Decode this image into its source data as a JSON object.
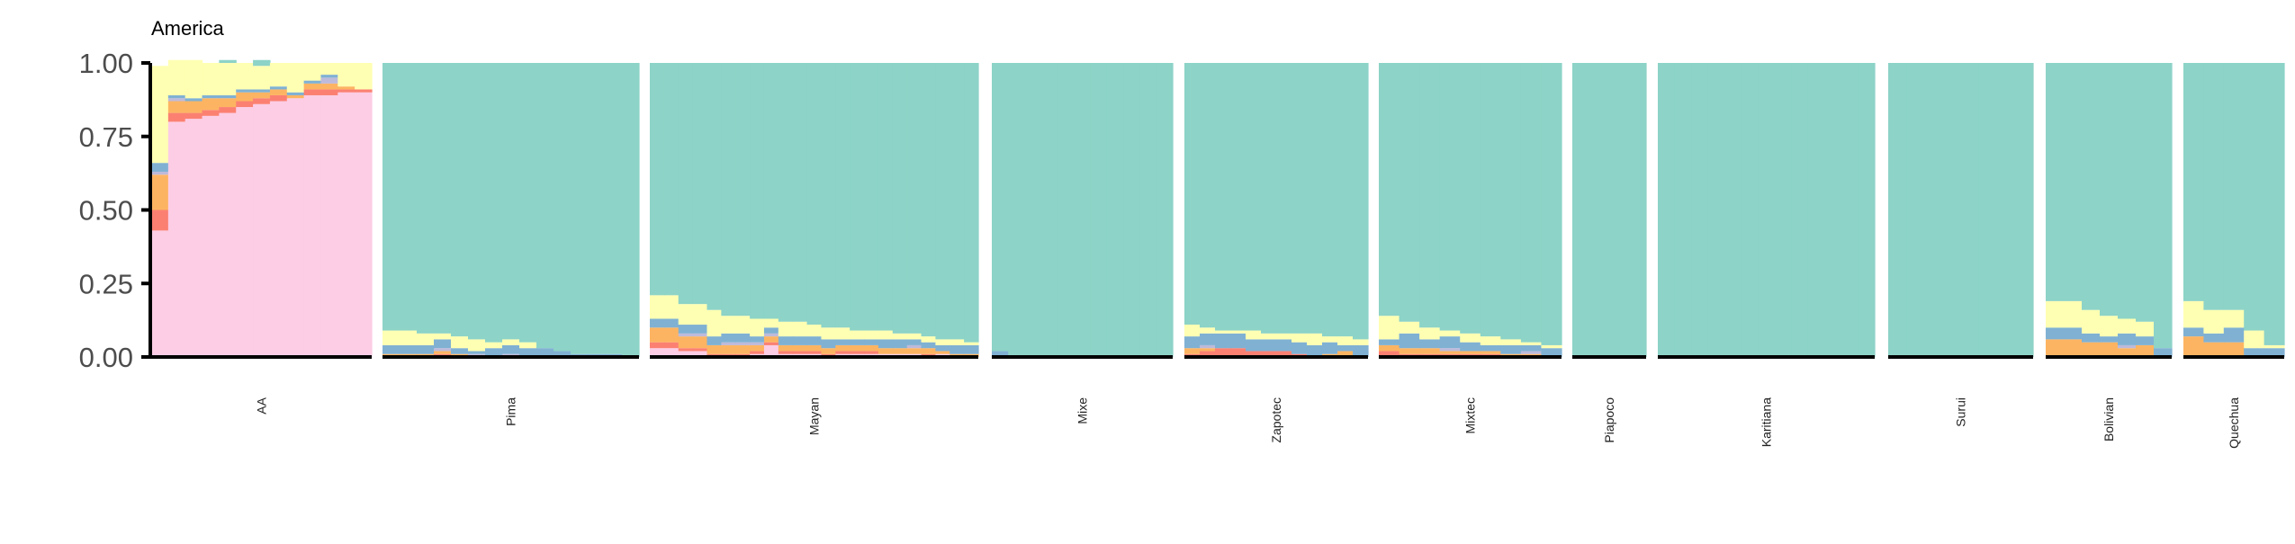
{
  "chart_data": {
    "type": "bar",
    "title": "America",
    "xlabel": "",
    "ylabel": "",
    "ylim": [
      0,
      1
    ],
    "grid": false,
    "legend": "none",
    "yticks": [
      "0.00",
      "0.25",
      "0.50",
      "0.75",
      "1.00"
    ],
    "components": [
      {
        "color": "#8dd3c7"
      },
      {
        "color": "#ffffb3"
      },
      {
        "color": "#80b1d3"
      },
      {
        "color": "#bebada"
      },
      {
        "color": "#fdb462"
      },
      {
        "color": "#fb8072"
      },
      {
        "color": "#fccde5"
      }
    ],
    "groups": [
      {
        "name": "AA",
        "samples": [
          [
            0.0,
            0.33,
            0.03,
            0.01,
            0.12,
            0.07,
            0.43
          ],
          [
            0.0,
            0.12,
            0.01,
            0.01,
            0.04,
            0.03,
            0.8
          ],
          [
            0.0,
            0.13,
            0.01,
            0.0,
            0.04,
            0.02,
            0.81
          ],
          [
            0.0,
            0.11,
            0.01,
            0.0,
            0.04,
            0.02,
            0.82
          ],
          [
            0.01,
            0.11,
            0.01,
            0.0,
            0.03,
            0.02,
            0.83
          ],
          [
            0.0,
            0.09,
            0.01,
            0.0,
            0.03,
            0.02,
            0.85
          ],
          [
            0.02,
            0.08,
            0.01,
            0.0,
            0.02,
            0.02,
            0.86
          ],
          [
            0.0,
            0.08,
            0.01,
            0.0,
            0.02,
            0.02,
            0.87
          ],
          [
            0.0,
            0.1,
            0.01,
            0.0,
            0.01,
            0.0,
            0.88
          ],
          [
            0.0,
            0.06,
            0.01,
            0.0,
            0.02,
            0.02,
            0.89
          ],
          [
            0.0,
            0.04,
            0.01,
            0.02,
            0.02,
            0.02,
            0.89
          ],
          [
            0.0,
            0.08,
            0.0,
            0.0,
            0.01,
            0.01,
            0.9
          ],
          [
            0.0,
            0.09,
            0.0,
            0.0,
            0.0,
            0.01,
            0.9
          ]
        ]
      },
      {
        "name": "Pima",
        "samples": [
          [
            0.91,
            0.05,
            0.03,
            0.0,
            0.01,
            0.0,
            0.0
          ],
          [
            0.91,
            0.05,
            0.03,
            0.0,
            0.01,
            0.0,
            0.0
          ],
          [
            0.92,
            0.04,
            0.03,
            0.0,
            0.01,
            0.0,
            0.0
          ],
          [
            0.92,
            0.02,
            0.03,
            0.01,
            0.01,
            0.01,
            0.0
          ],
          [
            0.93,
            0.04,
            0.02,
            0.0,
            0.01,
            0.0,
            0.0
          ],
          [
            0.94,
            0.04,
            0.01,
            0.01,
            0.0,
            0.0,
            0.0
          ],
          [
            0.95,
            0.02,
            0.03,
            0.0,
            0.0,
            0.0,
            0.0
          ],
          [
            0.94,
            0.02,
            0.03,
            0.01,
            0.0,
            0.0,
            0.0
          ],
          [
            0.95,
            0.02,
            0.03,
            0.0,
            0.0,
            0.0,
            0.0
          ],
          [
            0.97,
            0.0,
            0.03,
            0.0,
            0.0,
            0.0,
            0.0
          ],
          [
            0.98,
            0.0,
            0.02,
            0.0,
            0.0,
            0.0,
            0.0
          ],
          [
            0.99,
            0.0,
            0.01,
            0.0,
            0.0,
            0.0,
            0.0
          ],
          [
            0.99,
            0.0,
            0.01,
            0.0,
            0.0,
            0.0,
            0.0
          ],
          [
            0.99,
            0.0,
            0.01,
            0.0,
            0.0,
            0.0,
            0.0
          ],
          [
            1.0,
            0.0,
            0.0,
            0.0,
            0.0,
            0.0,
            0.0
          ]
        ]
      },
      {
        "name": "Mayan",
        "samples": [
          [
            0.79,
            0.08,
            0.03,
            0.0,
            0.05,
            0.02,
            0.03
          ],
          [
            0.79,
            0.08,
            0.03,
            0.0,
            0.05,
            0.02,
            0.03
          ],
          [
            0.82,
            0.07,
            0.03,
            0.01,
            0.04,
            0.01,
            0.02
          ],
          [
            0.82,
            0.07,
            0.03,
            0.01,
            0.04,
            0.01,
            0.02
          ],
          [
            0.84,
            0.09,
            0.03,
            0.0,
            0.03,
            0.01,
            0.0
          ],
          [
            0.86,
            0.06,
            0.03,
            0.01,
            0.03,
            0.01,
            0.0
          ],
          [
            0.86,
            0.06,
            0.03,
            0.01,
            0.03,
            0.01,
            0.0
          ],
          [
            0.87,
            0.06,
            0.02,
            0.01,
            0.02,
            0.01,
            0.01
          ],
          [
            0.87,
            0.03,
            0.02,
            0.01,
            0.02,
            0.01,
            0.04
          ],
          [
            0.88,
            0.05,
            0.03,
            0.0,
            0.02,
            0.01,
            0.01
          ],
          [
            0.88,
            0.05,
            0.03,
            0.0,
            0.02,
            0.01,
            0.01
          ],
          [
            0.89,
            0.04,
            0.03,
            0.0,
            0.02,
            0.01,
            0.01
          ],
          [
            0.9,
            0.04,
            0.03,
            0.0,
            0.02,
            0.01,
            0.0
          ],
          [
            0.9,
            0.04,
            0.02,
            0.0,
            0.02,
            0.01,
            0.01
          ],
          [
            0.91,
            0.03,
            0.02,
            0.0,
            0.02,
            0.01,
            0.01
          ],
          [
            0.91,
            0.03,
            0.02,
            0.0,
            0.02,
            0.01,
            0.01
          ],
          [
            0.91,
            0.03,
            0.03,
            0.0,
            0.02,
            0.0,
            0.01
          ],
          [
            0.92,
            0.02,
            0.03,
            0.0,
            0.02,
            0.0,
            0.01
          ],
          [
            0.92,
            0.02,
            0.02,
            0.01,
            0.02,
            0.0,
            0.01
          ],
          [
            0.93,
            0.02,
            0.02,
            0.0,
            0.02,
            0.01,
            0.0
          ],
          [
            0.94,
            0.02,
            0.02,
            0.0,
            0.01,
            0.0,
            0.01
          ],
          [
            0.94,
            0.02,
            0.03,
            0.0,
            0.01,
            0.0,
            0.0
          ],
          [
            0.95,
            0.01,
            0.03,
            0.0,
            0.01,
            0.0,
            0.0
          ]
        ]
      },
      {
        "name": "Mixe",
        "samples": [
          [
            0.98,
            0.0,
            0.02,
            0.0,
            0.0,
            0.0,
            0.0
          ],
          [
            1.0,
            0.0,
            0.0,
            0.0,
            0.0,
            0.0,
            0.0
          ],
          [
            1.0,
            0.0,
            0.0,
            0.0,
            0.0,
            0.0,
            0.0
          ],
          [
            1.0,
            0.0,
            0.0,
            0.0,
            0.0,
            0.0,
            0.0
          ],
          [
            1.0,
            0.0,
            0.0,
            0.0,
            0.0,
            0.0,
            0.0
          ],
          [
            1.0,
            0.0,
            0.0,
            0.0,
            0.0,
            0.0,
            0.0
          ],
          [
            1.0,
            0.0,
            0.0,
            0.0,
            0.0,
            0.0,
            0.0
          ],
          [
            1.0,
            0.0,
            0.0,
            0.0,
            0.0,
            0.0,
            0.0
          ],
          [
            1.0,
            0.0,
            0.0,
            0.0,
            0.0,
            0.0,
            0.0
          ],
          [
            1.0,
            0.0,
            0.0,
            0.0,
            0.0,
            0.0,
            0.0
          ],
          [
            1.0,
            0.0,
            0.0,
            0.0,
            0.0,
            0.0,
            0.0
          ]
        ]
      },
      {
        "name": "Zapotec",
        "samples": [
          [
            0.89,
            0.04,
            0.04,
            0.0,
            0.02,
            0.01,
            0.0
          ],
          [
            0.9,
            0.02,
            0.04,
            0.01,
            0.01,
            0.02,
            0.0
          ],
          [
            0.91,
            0.01,
            0.05,
            0.0,
            0.0,
            0.03,
            0.0
          ],
          [
            0.91,
            0.01,
            0.05,
            0.0,
            0.0,
            0.03,
            0.0
          ],
          [
            0.91,
            0.03,
            0.04,
            0.0,
            0.0,
            0.02,
            0.0
          ],
          [
            0.92,
            0.02,
            0.04,
            0.0,
            0.0,
            0.02,
            0.0
          ],
          [
            0.92,
            0.02,
            0.04,
            0.0,
            0.0,
            0.02,
            0.0
          ],
          [
            0.92,
            0.03,
            0.04,
            0.0,
            0.0,
            0.01,
            0.0
          ],
          [
            0.92,
            0.04,
            0.04,
            0.0,
            0.0,
            0.0,
            0.0
          ],
          [
            0.93,
            0.02,
            0.04,
            0.0,
            0.01,
            0.0,
            0.0
          ],
          [
            0.93,
            0.03,
            0.02,
            0.0,
            0.02,
            0.0,
            0.0
          ],
          [
            0.94,
            0.02,
            0.04,
            0.0,
            0.0,
            0.0,
            0.0
          ]
        ]
      },
      {
        "name": "Mixtec",
        "samples": [
          [
            0.86,
            0.08,
            0.02,
            0.0,
            0.02,
            0.02,
            0.0
          ],
          [
            0.88,
            0.04,
            0.05,
            0.0,
            0.02,
            0.01,
            0.0
          ],
          [
            0.9,
            0.04,
            0.03,
            0.0,
            0.02,
            0.01,
            0.0
          ],
          [
            0.91,
            0.02,
            0.04,
            0.01,
            0.01,
            0.01,
            0.0
          ],
          [
            0.92,
            0.03,
            0.03,
            0.0,
            0.01,
            0.01,
            0.0
          ],
          [
            0.93,
            0.03,
            0.02,
            0.0,
            0.01,
            0.01,
            0.0
          ],
          [
            0.94,
            0.02,
            0.03,
            0.0,
            0.01,
            0.0,
            0.0
          ],
          [
            0.95,
            0.01,
            0.02,
            0.01,
            0.01,
            0.0,
            0.0
          ],
          [
            0.96,
            0.01,
            0.03,
            0.0,
            0.0,
            0.0,
            0.0
          ]
        ]
      },
      {
        "name": "Piapoco",
        "samples": [
          [
            1.0,
            0.0,
            0.0,
            0.0,
            0.0,
            0.0,
            0.0
          ],
          [
            1.0,
            0.0,
            0.0,
            0.0,
            0.0,
            0.0,
            0.0
          ],
          [
            1.0,
            0.0,
            0.0,
            0.0,
            0.0,
            0.0,
            0.0
          ],
          [
            1.0,
            0.0,
            0.0,
            0.0,
            0.0,
            0.0,
            0.0
          ]
        ]
      },
      {
        "name": "Karitiana",
        "samples": [
          [
            1.0,
            0.0,
            0.0,
            0.0,
            0.0,
            0.0,
            0.0
          ],
          [
            1.0,
            0.0,
            0.0,
            0.0,
            0.0,
            0.0,
            0.0
          ],
          [
            1.0,
            0.0,
            0.0,
            0.0,
            0.0,
            0.0,
            0.0
          ],
          [
            1.0,
            0.0,
            0.0,
            0.0,
            0.0,
            0.0,
            0.0
          ],
          [
            1.0,
            0.0,
            0.0,
            0.0,
            0.0,
            0.0,
            0.0
          ],
          [
            1.0,
            0.0,
            0.0,
            0.0,
            0.0,
            0.0,
            0.0
          ],
          [
            1.0,
            0.0,
            0.0,
            0.0,
            0.0,
            0.0,
            0.0
          ],
          [
            1.0,
            0.0,
            0.0,
            0.0,
            0.0,
            0.0,
            0.0
          ],
          [
            1.0,
            0.0,
            0.0,
            0.0,
            0.0,
            0.0,
            0.0
          ],
          [
            1.0,
            0.0,
            0.0,
            0.0,
            0.0,
            0.0,
            0.0
          ],
          [
            1.0,
            0.0,
            0.0,
            0.0,
            0.0,
            0.0,
            0.0
          ],
          [
            1.0,
            0.0,
            0.0,
            0.0,
            0.0,
            0.0,
            0.0
          ],
          [
            1.0,
            0.0,
            0.0,
            0.0,
            0.0,
            0.0,
            0.0
          ]
        ]
      },
      {
        "name": "Surui",
        "samples": [
          [
            1.0,
            0.0,
            0.0,
            0.0,
            0.0,
            0.0,
            0.0
          ],
          [
            1.0,
            0.0,
            0.0,
            0.0,
            0.0,
            0.0,
            0.0
          ],
          [
            1.0,
            0.0,
            0.0,
            0.0,
            0.0,
            0.0,
            0.0
          ],
          [
            1.0,
            0.0,
            0.0,
            0.0,
            0.0,
            0.0,
            0.0
          ],
          [
            1.0,
            0.0,
            0.0,
            0.0,
            0.0,
            0.0,
            0.0
          ],
          [
            1.0,
            0.0,
            0.0,
            0.0,
            0.0,
            0.0,
            0.0
          ],
          [
            1.0,
            0.0,
            0.0,
            0.0,
            0.0,
            0.0,
            0.0
          ],
          [
            1.0,
            0.0,
            0.0,
            0.0,
            0.0,
            0.0,
            0.0
          ]
        ]
      },
      {
        "name": "Bolivian",
        "samples": [
          [
            0.81,
            0.09,
            0.04,
            0.0,
            0.06,
            0.0,
            0.0
          ],
          [
            0.81,
            0.09,
            0.04,
            0.0,
            0.06,
            0.0,
            0.0
          ],
          [
            0.84,
            0.08,
            0.03,
            0.0,
            0.05,
            0.0,
            0.0
          ],
          [
            0.86,
            0.07,
            0.02,
            0.0,
            0.05,
            0.0,
            0.0
          ],
          [
            0.87,
            0.05,
            0.04,
            0.01,
            0.03,
            0.0,
            0.0
          ],
          [
            0.88,
            0.05,
            0.03,
            0.0,
            0.04,
            0.0,
            0.0
          ],
          [
            0.97,
            0.0,
            0.03,
            0.0,
            0.0,
            0.0,
            0.0
          ]
        ]
      },
      {
        "name": "Quechua",
        "samples": [
          [
            0.81,
            0.09,
            0.03,
            0.0,
            0.07,
            0.0,
            0.0
          ],
          [
            0.84,
            0.08,
            0.03,
            0.0,
            0.05,
            0.0,
            0.0
          ],
          [
            0.84,
            0.06,
            0.05,
            0.0,
            0.05,
            0.0,
            0.0
          ],
          [
            0.91,
            0.06,
            0.03,
            0.0,
            0.0,
            0.0,
            0.0
          ],
          [
            0.96,
            0.01,
            0.03,
            0.0,
            0.0,
            0.0,
            0.0
          ]
        ]
      }
    ]
  }
}
